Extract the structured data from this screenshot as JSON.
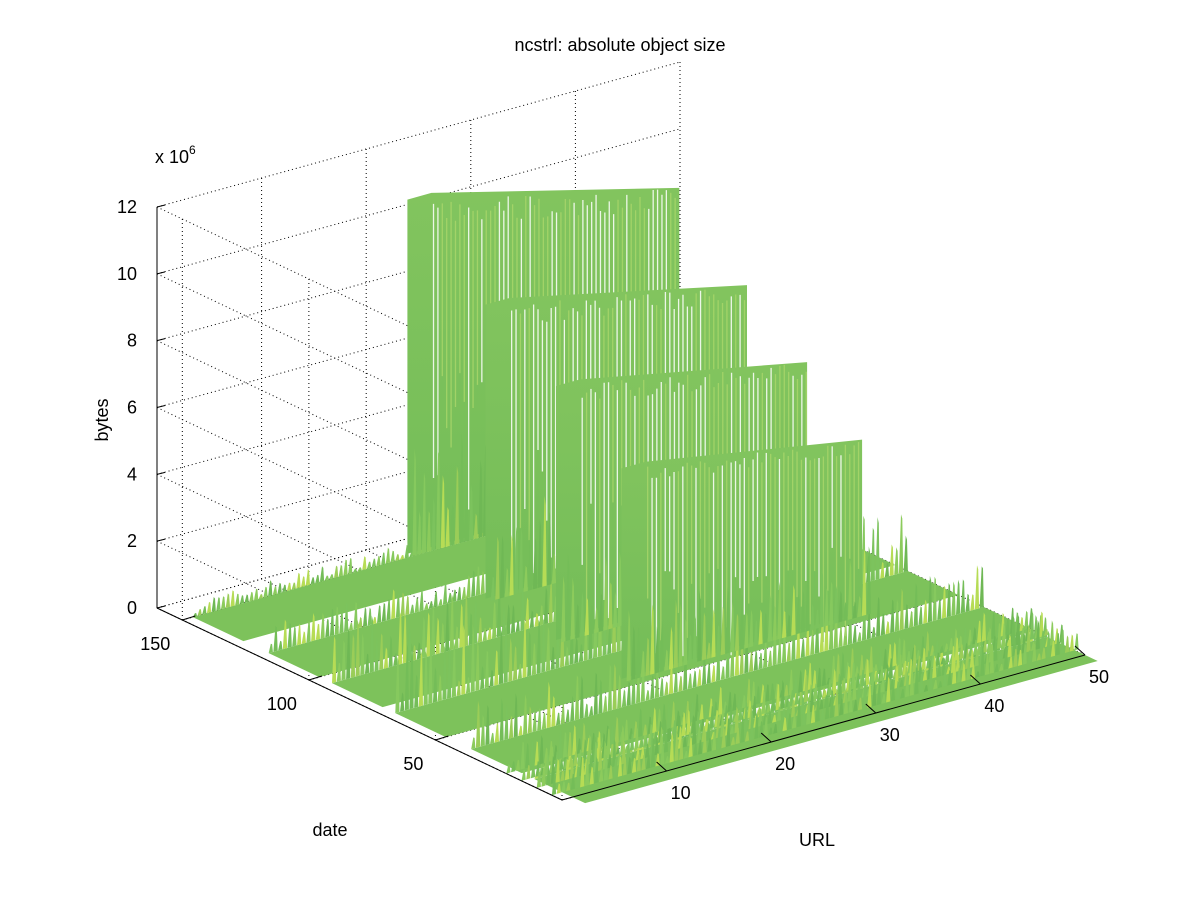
{
  "chart_data": {
    "type": "surface",
    "title": "ncstrl: absolute object size",
    "xlabel": "URL",
    "ylabel": "date",
    "zlabel": "bytes",
    "z_multiplier_label": "x 10",
    "z_multiplier_exponent": "6",
    "xlim": [
      0,
      50
    ],
    "ylim": [
      0,
      160
    ],
    "zlim": [
      0,
      12
    ],
    "x_ticks": [
      "10",
      "20",
      "30",
      "40",
      "50"
    ],
    "y_ticks": [
      "50",
      "100",
      "150"
    ],
    "z_ticks": [
      "0",
      "2",
      "4",
      "6",
      "8",
      "10",
      "12"
    ],
    "grid": true,
    "colormap_color": "#7cc35d",
    "tall_ridges": [
      {
        "date": 152,
        "url_from": 22,
        "url_to": 48,
        "peak_bytes_1e6": 10.6
      },
      {
        "date": 117,
        "url_from": 21,
        "url_to": 46,
        "peak_bytes_1e6": 8.8
      },
      {
        "date": 85,
        "url_from": 20,
        "url_to": 44,
        "peak_bytes_1e6": 7.6
      },
      {
        "date": 55,
        "url_from": 19,
        "url_to": 42,
        "peak_bytes_1e6": 6.3
      }
    ],
    "low_ridges": [
      {
        "date": 150,
        "url_from": 1,
        "url_to": 50,
        "peak_bytes_1e6": 0.5
      },
      {
        "date": 120,
        "url_from": 1,
        "url_to": 50,
        "peak_bytes_1e6": 0.9
      },
      {
        "date": 95,
        "url_from": 1,
        "url_to": 50,
        "peak_bytes_1e6": 1.7
      },
      {
        "date": 70,
        "url_from": 1,
        "url_to": 50,
        "peak_bytes_1e6": 2.1
      },
      {
        "date": 40,
        "url_from": 1,
        "url_to": 50,
        "peak_bytes_1e6": 1.4
      },
      {
        "date": 15,
        "url_from": 1,
        "url_to": 50,
        "peak_bytes_1e6": 0.8
      }
    ]
  }
}
